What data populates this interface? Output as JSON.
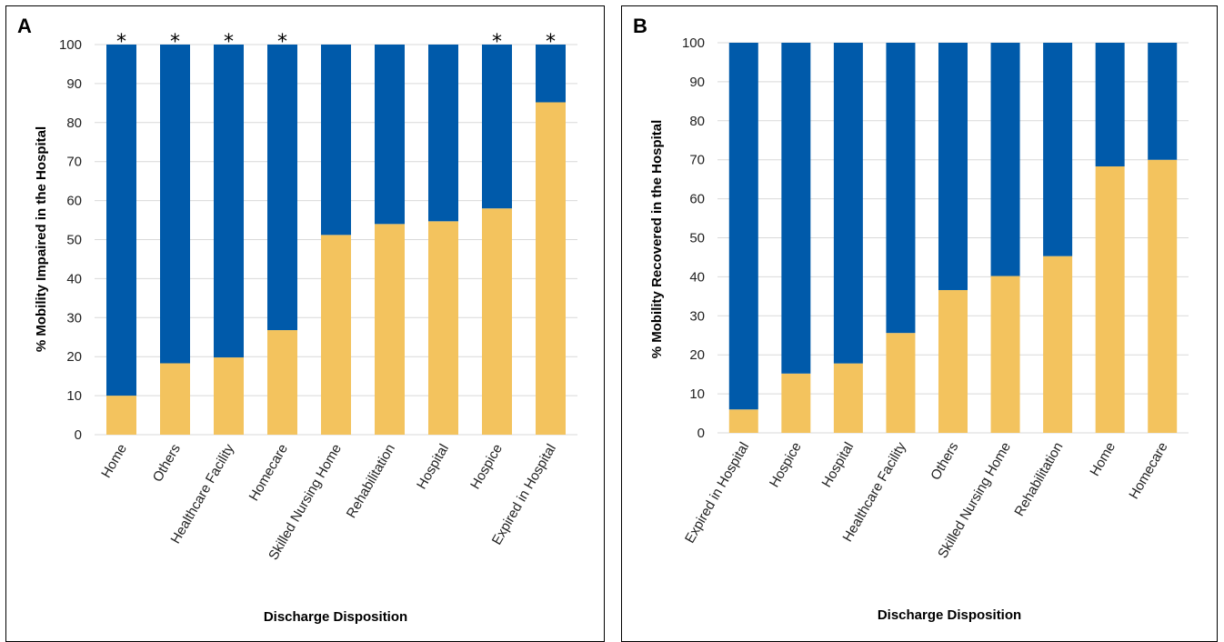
{
  "colors": {
    "low": "#F3C35E",
    "high": "#005AAA",
    "grid": "#D9D9D9"
  },
  "chart_data": [
    {
      "panel": "A",
      "type": "bar",
      "stacked": true,
      "categories": [
        "Home",
        "Others",
        "Healthcare Facility",
        "Homecare",
        "Skilled Nursing Home",
        "Rehabilitation",
        "Hospital",
        "Hospice",
        "Expired in Hospital"
      ],
      "series": [
        {
          "values": [
            10,
            18.3,
            19.8,
            26.8,
            51.2,
            54,
            54.7,
            58,
            85.2
          ]
        },
        {
          "values": [
            90,
            81.7,
            80.2,
            73.2,
            48.8,
            46,
            45.3,
            42,
            14.8
          ]
        }
      ],
      "significance": [
        "*",
        "*",
        "*",
        "*",
        "",
        "",
        "",
        "*",
        "*"
      ],
      "xlabel": "Discharge Disposition",
      "ylabel": "% Mobility Impaired in the Hospital",
      "ylim": [
        0,
        100
      ],
      "yticks": [
        "0",
        "10",
        "20",
        "30",
        "40",
        "50",
        "60",
        "70",
        "80",
        "90",
        "100"
      ],
      "grid": true
    },
    {
      "panel": "B",
      "type": "bar",
      "stacked": true,
      "categories": [
        "Expired in Hospital",
        "Hospice",
        "Hospital",
        "Healthcare Facility",
        "Others",
        "Skilled Nursing Home",
        "Rehabilitation",
        "Home",
        "Homecare"
      ],
      "series": [
        {
          "values": [
            6,
            15.2,
            17.8,
            25.6,
            36.6,
            40.2,
            45.3,
            68.3,
            70
          ]
        },
        {
          "values": [
            94,
            84.8,
            82.2,
            74.4,
            63.4,
            59.8,
            54.7,
            31.7,
            30
          ]
        }
      ],
      "significance": [
        "",
        "",
        "",
        "",
        "",
        "",
        "",
        "",
        ""
      ],
      "xlabel": "Discharge Disposition",
      "ylabel": "% Mobility Recovered in the Hospital",
      "ylim": [
        0,
        100
      ],
      "yticks": [
        "0",
        "10",
        "20",
        "30",
        "40",
        "50",
        "60",
        "70",
        "80",
        "90",
        "100"
      ],
      "grid": true
    }
  ]
}
